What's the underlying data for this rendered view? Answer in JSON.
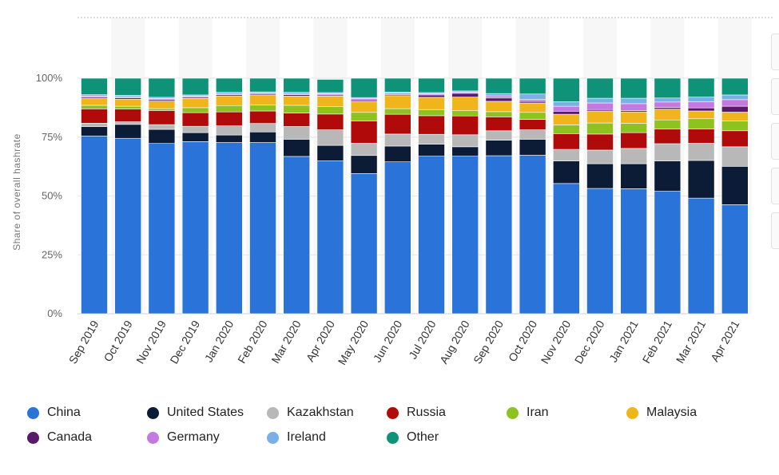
{
  "chart_data": {
    "type": "bar",
    "stacked": true,
    "normalized": true,
    "title": "",
    "ylabel": "Share of overall hashrate",
    "xlabel": "",
    "ylim": [
      0,
      100
    ],
    "yticks": [
      "0%",
      "25%",
      "50%",
      "75%",
      "100%"
    ],
    "categories": [
      "Sep 2019",
      "Oct 2019",
      "Nov 2019",
      "Dec 2019",
      "Jan 2020",
      "Feb 2020",
      "Mar 2020",
      "Apr 2020",
      "May 2020",
      "Jun 2020",
      "Jul 2020",
      "Aug 2020",
      "Sep 2020",
      "Oct 2020",
      "Nov 2020",
      "Dec 2020",
      "Jan 2021",
      "Feb 2021",
      "Mar 2021",
      "Apr 2021"
    ],
    "legend_position": "bottom",
    "series": [
      {
        "name": "China",
        "color": "#2a73d9",
        "values": [
          75.5,
          74.5,
          72.3,
          73.1,
          72.7,
          72.7,
          66.8,
          64.9,
          59.5,
          64.5,
          66.9,
          66.9,
          67.1,
          67.3,
          55.3,
          53.2,
          53.1,
          52.0,
          49.1,
          46.3
        ]
      },
      {
        "name": "United States",
        "color": "#0c1c36",
        "values": [
          4.0,
          5.9,
          6.0,
          3.8,
          3.2,
          4.5,
          7.3,
          6.6,
          7.7,
          6.7,
          5.1,
          4.0,
          6.6,
          6.8,
          9.6,
          10.5,
          10.6,
          12.9,
          16.0,
          16.3
        ]
      },
      {
        "name": "Kazakhstan",
        "color": "#b8b8b8",
        "values": [
          1.4,
          1.1,
          2.0,
          2.7,
          3.9,
          3.6,
          5.4,
          6.6,
          5.2,
          5.1,
          4.2,
          5.1,
          4.0,
          4.0,
          4.9,
          5.8,
          6.5,
          7.3,
          7.3,
          8.3
        ]
      },
      {
        "name": "Russia",
        "color": "#b10a0a",
        "values": [
          6.1,
          5.4,
          6.0,
          5.8,
          5.9,
          5.3,
          5.7,
          6.7,
          9.5,
          8.4,
          7.9,
          8.0,
          5.9,
          4.4,
          6.7,
          6.8,
          6.7,
          6.2,
          6.1,
          6.8
        ]
      },
      {
        "name": "Iran",
        "color": "#8dc21f",
        "values": [
          1.5,
          1.2,
          0.8,
          2.1,
          2.7,
          2.5,
          3.3,
          3.1,
          3.6,
          2.4,
          2.6,
          2.2,
          2.2,
          3.0,
          3.7,
          4.7,
          4.0,
          3.9,
          4.3,
          4.1
        ]
      },
      {
        "name": "Malaysia",
        "color": "#f0b51b",
        "values": [
          3.0,
          3.0,
          3.2,
          3.9,
          4.1,
          4.1,
          3.9,
          4.5,
          4.7,
          5.5,
          5.2,
          5.8,
          4.4,
          4.0,
          4.5,
          5.1,
          4.8,
          4.6,
          3.3,
          3.8
        ]
      },
      {
        "name": "Canada",
        "color": "#5a1a6b",
        "values": [
          0.5,
          0.6,
          0.6,
          0.5,
          0.5,
          0.5,
          0.6,
          0.5,
          0.6,
          0.5,
          1.0,
          1.6,
          1.4,
          0.7,
          1.3,
          0.6,
          0.6,
          0.7,
          1.3,
          2.5
        ]
      },
      {
        "name": "Germany",
        "color": "#c479e0",
        "values": [
          0.5,
          0.5,
          0.5,
          0.5,
          0.5,
          0.5,
          0.5,
          0.5,
          0.5,
          0.5,
          0.5,
          0.5,
          0.9,
          0.8,
          2.1,
          2.8,
          2.9,
          2.3,
          2.6,
          2.8
        ]
      },
      {
        "name": "Ireland",
        "color": "#7ab0e6",
        "values": [
          0.5,
          0.5,
          0.5,
          0.5,
          0.5,
          0.5,
          0.5,
          0.5,
          0.5,
          0.5,
          0.5,
          0.5,
          1.0,
          2.3,
          1.9,
          2.0,
          2.3,
          1.7,
          2.0,
          2.0
        ]
      },
      {
        "name": "Other",
        "color": "#0e9278",
        "values": [
          7.0,
          7.3,
          8.1,
          7.1,
          6.0,
          5.8,
          6.0,
          5.6,
          8.2,
          5.9,
          6.1,
          5.4,
          6.5,
          6.7,
          10.0,
          8.5,
          8.5,
          8.4,
          8.0,
          7.1
        ]
      }
    ]
  }
}
